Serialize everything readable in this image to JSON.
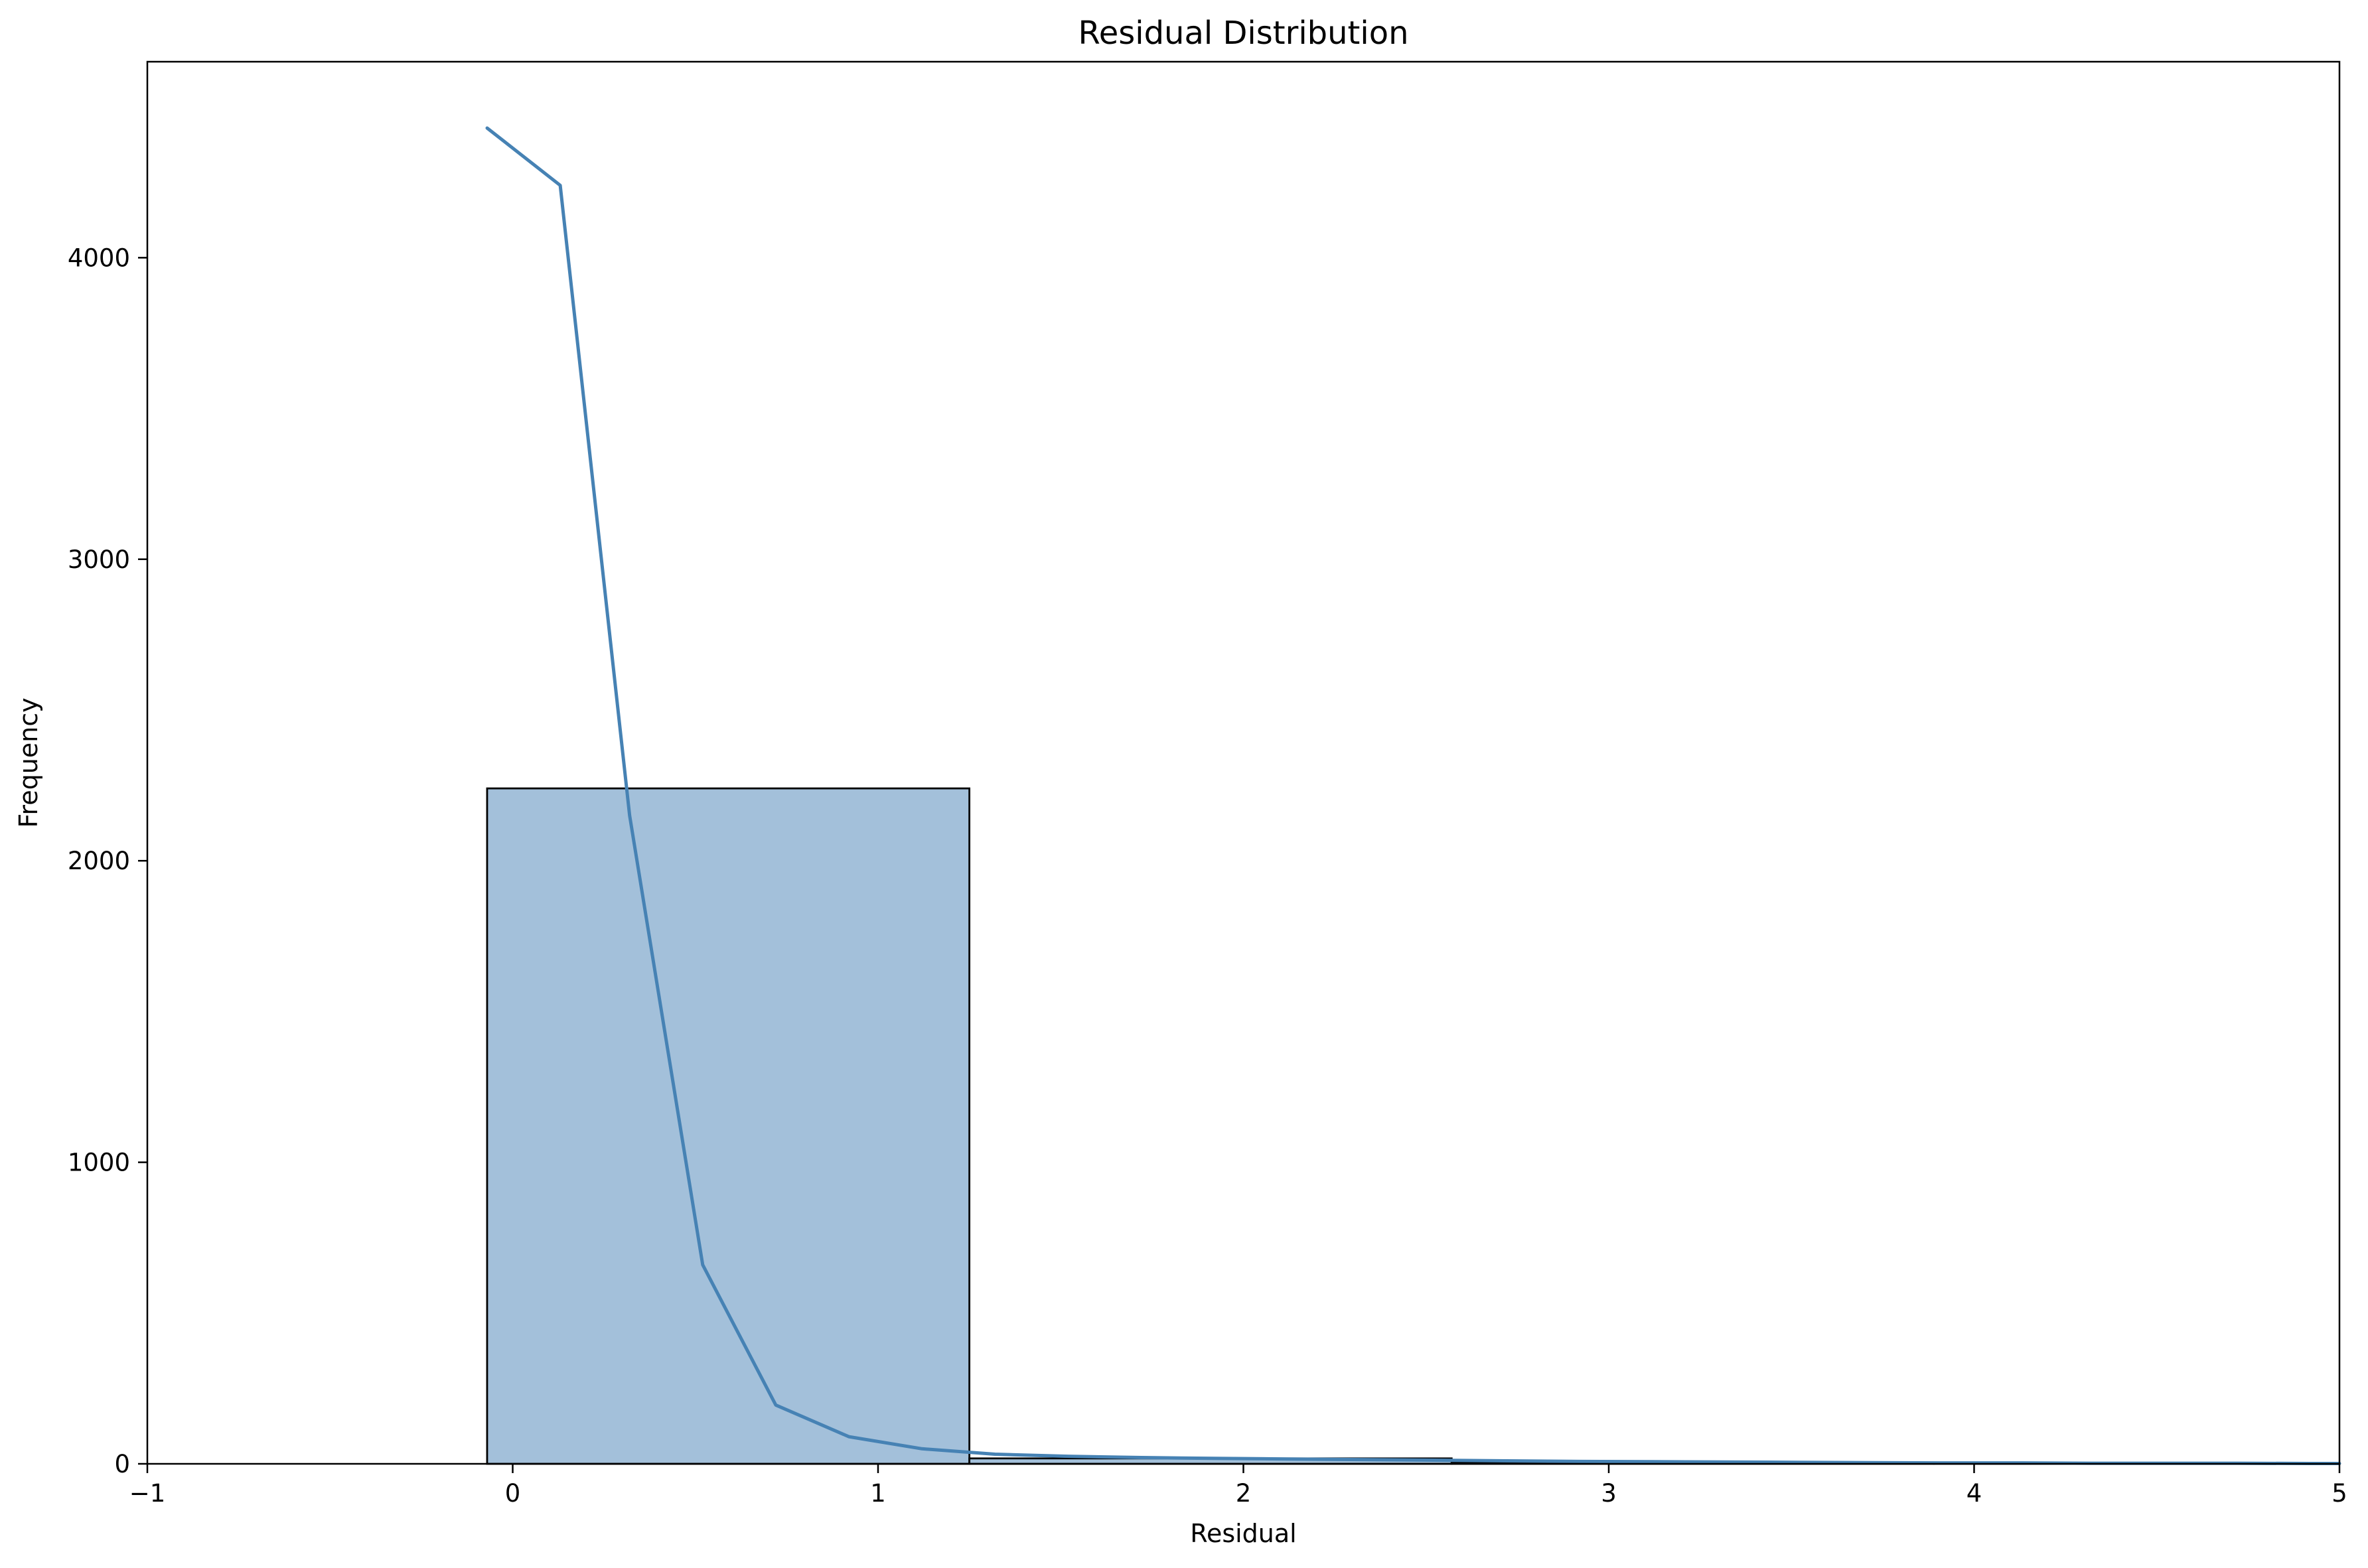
{
  "chart_data": {
    "type": "bar",
    "subtype": "histogram-with-kde",
    "title": "Residual Distribution",
    "xlabel": "Residual",
    "ylabel": "Frequency",
    "xlim": [
      -1,
      5
    ],
    "ylim": [
      0,
      4650
    ],
    "x_ticks": [
      -1,
      0,
      1,
      2,
      3,
      4,
      5
    ],
    "x_tick_labels": [
      "−1",
      "0",
      "1",
      "2",
      "3",
      "4",
      "5"
    ],
    "y_ticks": [
      0,
      1000,
      2000,
      3000,
      4000
    ],
    "y_tick_labels": [
      "0",
      "1000",
      "2000",
      "3000",
      "4000"
    ],
    "grid": false,
    "legend": "none",
    "bins": [
      {
        "x0": -0.07,
        "x1": 1.25,
        "count": 2240
      },
      {
        "x0": 1.25,
        "x1": 2.57,
        "count": 18
      },
      {
        "x0": 2.57,
        "x1": 3.89,
        "count": 4
      },
      {
        "x0": 3.89,
        "x1": 5.21,
        "count": 1
      }
    ],
    "kde": {
      "x": [
        -0.07,
        0.13,
        0.32,
        0.52,
        0.72,
        0.92,
        1.12,
        1.32,
        1.52,
        1.72,
        1.92,
        2.12,
        2.32,
        2.52,
        2.72,
        2.92,
        3.12,
        3.32,
        3.52,
        3.72,
        3.92,
        4.12,
        4.32,
        4.52,
        4.72,
        4.92,
        5.0
      ],
      "y": [
        4430,
        4240,
        2150,
        660,
        195,
        90,
        50,
        32,
        25,
        21,
        18,
        16,
        14,
        12,
        10,
        8,
        7,
        6,
        5,
        4,
        3,
        3,
        2,
        2,
        2,
        1,
        1
      ]
    },
    "colors": {
      "bar_fill": "#a3c0da",
      "bar_edge": "#000000",
      "kde_line": "#4682b4",
      "axes": "#000000"
    }
  }
}
